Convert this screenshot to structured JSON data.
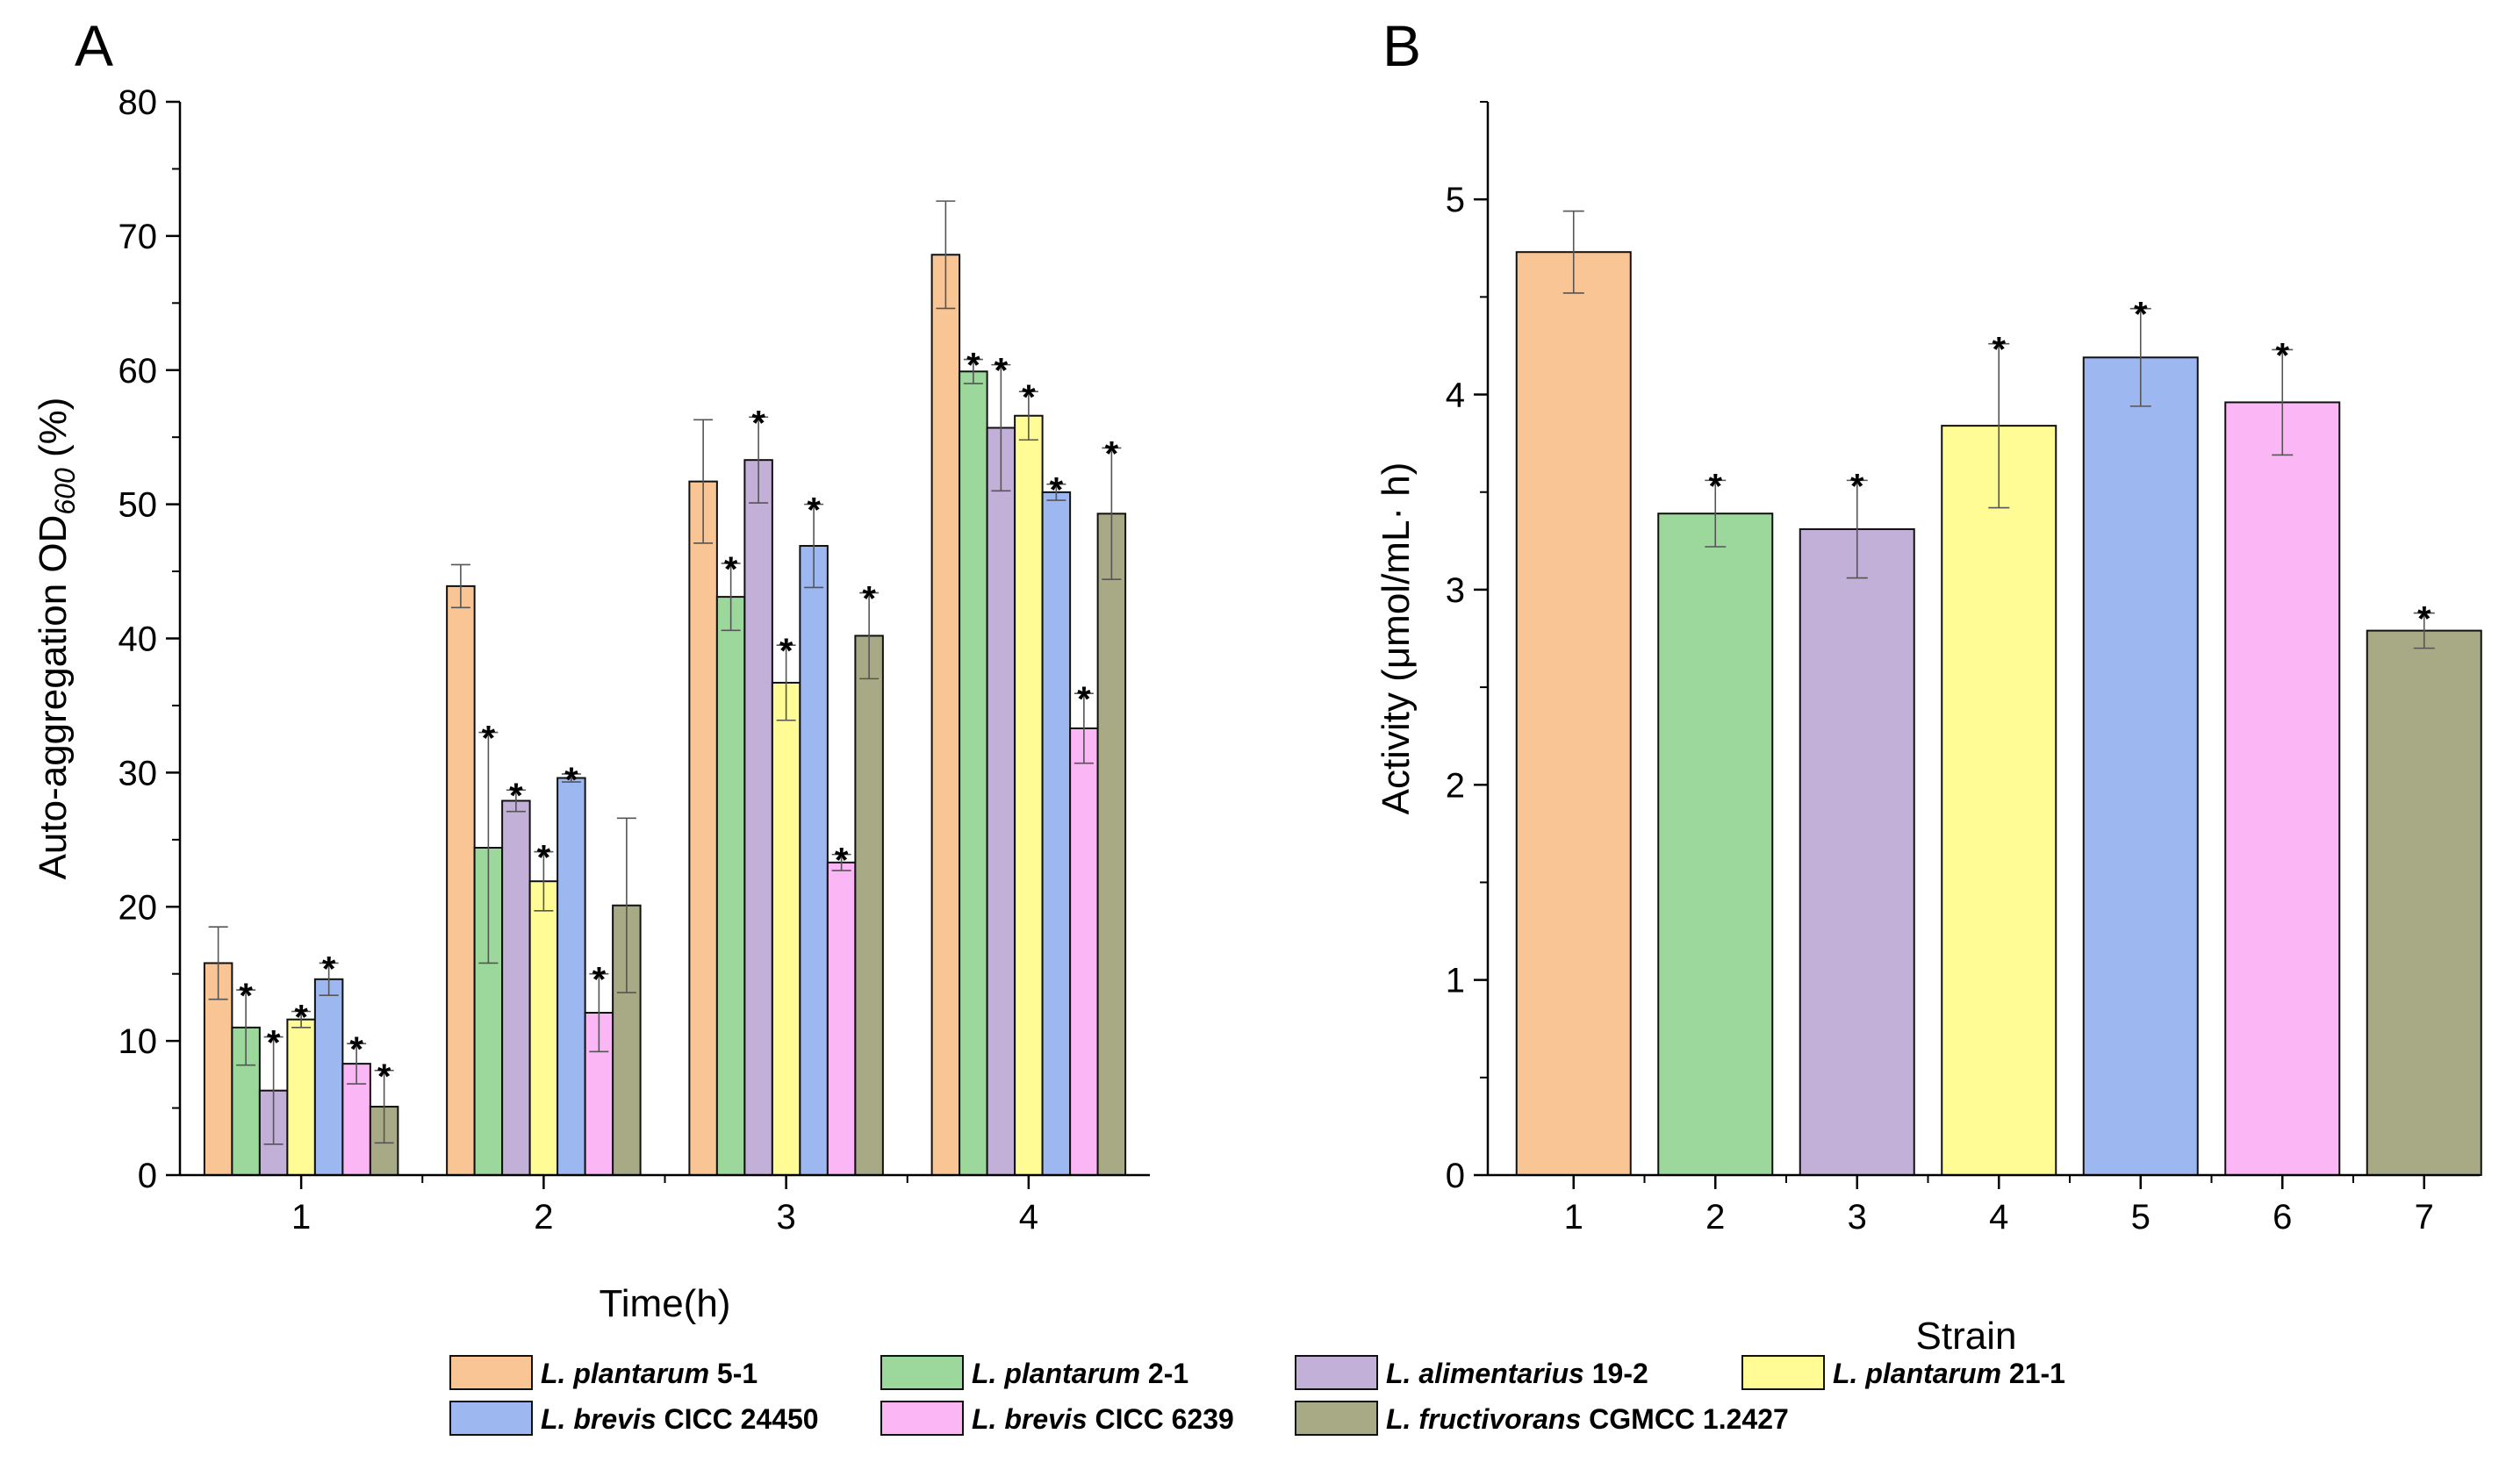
{
  "colors": {
    "L. plantarum 5-1": "#F9C595",
    "L. plantarum 2-1": "#9CD89C",
    "L. alimentarius 19-2": "#C2B0D8",
    "L. plantarum 21-1": "#FFFC95",
    "L. brevis CICC 24450": "#9DB8F0",
    "L. brevis CICC 6239": "#FBB6F5",
    "L. fructivorans CGMCC 1.2427": "#A7AA84"
  },
  "legend": [
    {
      "name": "L. plantarum",
      "code": "5-1",
      "key": "L. plantarum 5-1"
    },
    {
      "name": "L. plantarum",
      "code": "2-1",
      "key": "L. plantarum 2-1"
    },
    {
      "name": "L. alimentarius",
      "code": "19-2",
      "key": "L. alimentarius 19-2"
    },
    {
      "name": "L. plantarum",
      "code": "21-1",
      "key": "L. plantarum 21-1"
    },
    {
      "name": "L. brevis",
      "code": "CICC 24450",
      "key": "L. brevis CICC 24450"
    },
    {
      "name": "L. brevis",
      "code": "CICC 6239",
      "key": "L. brevis CICC 6239"
    },
    {
      "name": "L. fructivorans",
      "code": "CGMCC 1.2427",
      "key": "L. fructivorans CGMCC 1.2427"
    }
  ],
  "chart_data": [
    {
      "panel": "A",
      "type": "bar",
      "xlabel": "Time(h)",
      "ylabel_main": "Auto-aggregation OD",
      "ylabel_sub": "600",
      "ylabel_suffix": " (%)",
      "ylim": [
        0,
        80
      ],
      "yticks": [
        0,
        10,
        20,
        30,
        40,
        50,
        60,
        70,
        80
      ],
      "categories": [
        "1",
        "2",
        "3",
        "4"
      ],
      "series": [
        {
          "name": "L. plantarum 5-1",
          "values": [
            15.8,
            43.9,
            51.7,
            68.6
          ],
          "errors": [
            2.7,
            1.6,
            4.6,
            4.0
          ],
          "sig": [
            false,
            false,
            false,
            false
          ]
        },
        {
          "name": "L. plantarum 2-1",
          "values": [
            11.0,
            24.4,
            43.1,
            59.9
          ],
          "errors": [
            2.8,
            8.6,
            2.5,
            0.9
          ],
          "sig": [
            true,
            true,
            true,
            true
          ]
        },
        {
          "name": "L. alimentarius 19-2",
          "values": [
            6.3,
            27.9,
            53.3,
            55.7
          ],
          "errors": [
            4.0,
            0.8,
            3.2,
            4.7
          ],
          "sig": [
            true,
            true,
            true,
            true
          ]
        },
        {
          "name": "L. plantarum 21-1",
          "values": [
            11.6,
            21.9,
            36.7,
            56.6
          ],
          "errors": [
            0.6,
            2.2,
            2.8,
            1.8
          ],
          "sig": [
            true,
            true,
            true,
            true
          ]
        },
        {
          "name": "L. brevis CICC 24450",
          "values": [
            14.6,
            29.6,
            46.9,
            50.9
          ],
          "errors": [
            1.2,
            0.3,
            3.1,
            0.6
          ],
          "sig": [
            true,
            true,
            true,
            true
          ]
        },
        {
          "name": "L. brevis CICC 6239",
          "values": [
            8.3,
            12.1,
            23.3,
            33.3
          ],
          "errors": [
            1.5,
            2.9,
            0.6,
            2.6
          ],
          "sig": [
            true,
            true,
            true,
            true
          ]
        },
        {
          "name": "L. fructivorans CGMCC 1.2427",
          "values": [
            5.1,
            20.1,
            40.2,
            49.3
          ],
          "errors": [
            2.7,
            6.5,
            3.2,
            4.9
          ],
          "sig": [
            true,
            false,
            true,
            true
          ]
        }
      ]
    },
    {
      "panel": "B",
      "type": "bar",
      "xlabel": "Strain",
      "ylabel": "Activity (μmol/mL· h)",
      "ylim": [
        0,
        5.5
      ],
      "yticks": [
        0,
        1,
        2,
        3,
        4,
        5
      ],
      "categories": [
        "1",
        "2",
        "3",
        "4",
        "5",
        "6",
        "7"
      ],
      "values": [
        4.73,
        3.39,
        3.31,
        3.84,
        4.19,
        3.96,
        2.79
      ],
      "errors": [
        0.21,
        0.17,
        0.25,
        0.42,
        0.25,
        0.27,
        0.09
      ],
      "sig": [
        false,
        true,
        true,
        true,
        true,
        true,
        true
      ],
      "series_names": [
        "L. plantarum 5-1",
        "L. plantarum 2-1",
        "L. alimentarius 19-2",
        "L. plantarum 21-1",
        "L. brevis CICC 24450",
        "L. brevis CICC 6239",
        "L. fructivorans CGMCC 1.2427"
      ]
    }
  ]
}
